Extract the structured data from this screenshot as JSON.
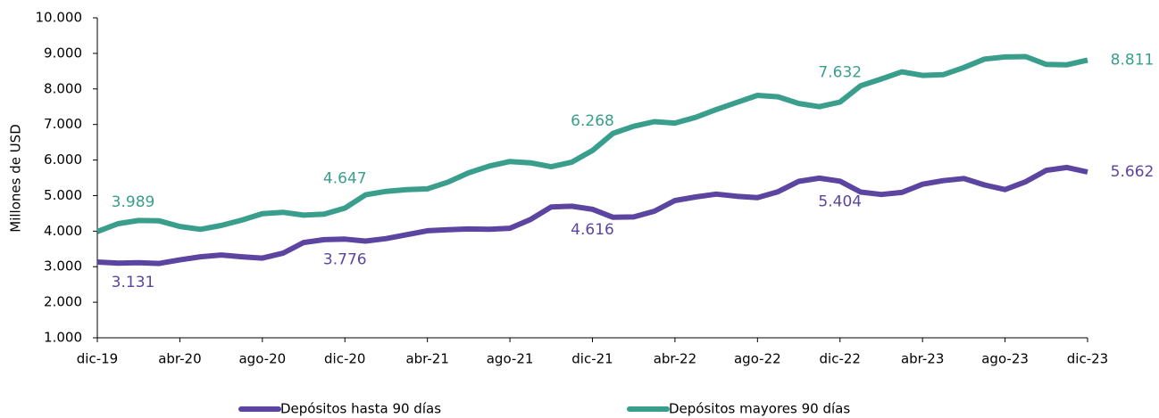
{
  "chart_data": {
    "type": "line",
    "ylabel": "Millones de USD",
    "categories": [
      "dic-19",
      null,
      null,
      null,
      "abr-20",
      null,
      null,
      null,
      "ago-20",
      null,
      null,
      null,
      "dic-20",
      null,
      null,
      null,
      "abr-21",
      null,
      null,
      null,
      "ago-21",
      null,
      null,
      null,
      "dic-21",
      null,
      null,
      null,
      "abr-22",
      null,
      null,
      null,
      "ago-22",
      null,
      null,
      null,
      "dic-22",
      null,
      null,
      null,
      "abr-23",
      null,
      null,
      null,
      "ago-23",
      null,
      null,
      null,
      "dic-23"
    ],
    "series": [
      {
        "name": "Depósitos hasta 90 días",
        "color": "#5b45a0",
        "values": [
          3131,
          3100,
          3110,
          3090,
          3190,
          3280,
          3330,
          3280,
          3240,
          3380,
          3680,
          3760,
          3776,
          3720,
          3790,
          3900,
          4010,
          4040,
          4060,
          4050,
          4080,
          4330,
          4680,
          4700,
          4616,
          4390,
          4400,
          4560,
          4860,
          4960,
          5040,
          4980,
          4940,
          5110,
          5400,
          5490,
          5404,
          5100,
          5030,
          5090,
          5320,
          5420,
          5480,
          5300,
          5170,
          5390,
          5710,
          5790,
          5662
        ],
        "value_labels": [
          "3.131",
          null,
          null,
          null,
          null,
          null,
          null,
          null,
          null,
          null,
          null,
          null,
          "3.776",
          null,
          null,
          null,
          null,
          null,
          null,
          null,
          null,
          null,
          null,
          null,
          "4.616",
          null,
          null,
          null,
          null,
          null,
          null,
          null,
          null,
          null,
          null,
          null,
          "5.404",
          null,
          null,
          null,
          null,
          null,
          null,
          null,
          null,
          null,
          null,
          null,
          "5.662"
        ]
      },
      {
        "name": "Depósitos mayores 90 días",
        "color": "#3a9e8c",
        "values": [
          3989,
          4210,
          4300,
          4290,
          4130,
          4050,
          4160,
          4310,
          4490,
          4530,
          4450,
          4480,
          4647,
          5020,
          5120,
          5170,
          5190,
          5380,
          5640,
          5830,
          5960,
          5920,
          5810,
          5940,
          6268,
          6750,
          6950,
          7080,
          7040,
          7200,
          7420,
          7620,
          7820,
          7780,
          7590,
          7500,
          7632,
          8090,
          8280,
          8480,
          8380,
          8400,
          8600,
          8840,
          8900,
          8910,
          8690,
          8680,
          8811
        ],
        "value_labels": [
          "3.989",
          null,
          null,
          null,
          null,
          null,
          null,
          null,
          null,
          null,
          null,
          null,
          "4.647",
          null,
          null,
          null,
          null,
          null,
          null,
          null,
          null,
          null,
          null,
          null,
          "6.268",
          null,
          null,
          null,
          null,
          null,
          null,
          null,
          null,
          null,
          null,
          null,
          "7.632",
          null,
          null,
          null,
          null,
          null,
          null,
          null,
          null,
          null,
          null,
          null,
          "8.811"
        ]
      }
    ],
    "ylim": [
      1000,
      10000
    ],
    "yticks": [
      {
        "value": 1000,
        "label": "1.000"
      },
      {
        "value": 2000,
        "label": "2.000"
      },
      {
        "value": 3000,
        "label": "3.000"
      },
      {
        "value": 4000,
        "label": "4.000"
      },
      {
        "value": 5000,
        "label": "5.000"
      },
      {
        "value": 6000,
        "label": "6.000"
      },
      {
        "value": 7000,
        "label": "7.000"
      },
      {
        "value": 8000,
        "label": "8.000"
      },
      {
        "value": 9000,
        "label": "9.000"
      },
      {
        "value": 10000,
        "label": "10.000"
      }
    ],
    "grid": false,
    "legend": "bottom"
  }
}
